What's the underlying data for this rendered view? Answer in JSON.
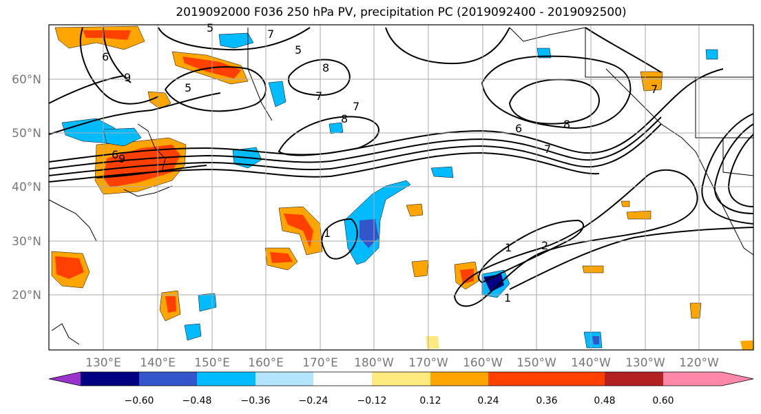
{
  "title": "2019092000 F036 250 hPa PV, precipitation PC (2019092400 - 2019092500)",
  "lat_labels": [
    "60°N",
    "50°N",
    "40°N",
    "30°N",
    "20°N"
  ],
  "lon_labels": [
    "130°E",
    "140°E",
    "150°E",
    "160°E",
    "170°E",
    "180°W",
    "170°W",
    "160°W",
    "150°W",
    "140°W",
    "130°W",
    "120°W"
  ],
  "colorbar": {
    "ticks": [
      "−0.60",
      "−0.48",
      "−0.36",
      "−0.24",
      "−0.12",
      "0.12",
      "0.24",
      "0.36",
      "0.48",
      "0.60"
    ],
    "colors": [
      "#9933cc",
      "#000080",
      "#3355cc",
      "#00bbff",
      "#b3e5ff",
      "#ffffff",
      "#ffea80",
      "#ffa500",
      "#ff4000",
      "#b22222",
      "#ff88aa"
    ]
  },
  "contour_labels": [
    "5",
    "7",
    "5",
    "8",
    "7",
    "6",
    "8",
    "9",
    "7",
    "8",
    "6",
    "5",
    "1",
    "1",
    "2",
    "1",
    "9",
    "6",
    "7",
    "7"
  ],
  "colors": {
    "ocean": "#ffffff",
    "grid": "#aaaaaa",
    "coast": "#000000"
  }
}
